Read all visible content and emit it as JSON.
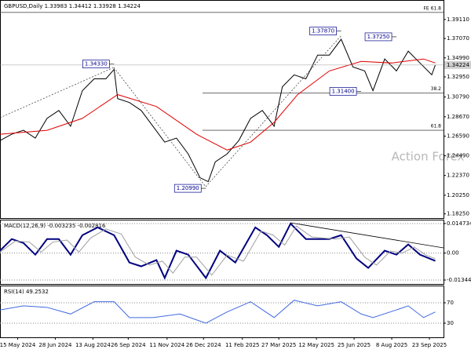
{
  "chart_data": [
    {
      "type": "line",
      "title": "GBPUSD,Daily 1.33983 1.34412 1.33928 1.34224",
      "watermark": "Action Forex",
      "xlim": [
        0,
        377
      ],
      "ylim": [
        1.178,
        1.412
      ],
      "yticks": [
        {
          "value": 1.3911,
          "label": "1.39110"
        },
        {
          "value": 1.3707,
          "label": "1.37070"
        },
        {
          "value": 1.3499,
          "label": "1.34990"
        },
        {
          "value": 1.3295,
          "label": "1.32950"
        },
        {
          "value": 1.3079,
          "label": "1.30790"
        },
        {
          "value": 1.2867,
          "label": "1.28670"
        },
        {
          "value": 1.2659,
          "label": "1.26590"
        },
        {
          "value": 1.2449,
          "label": "1.24490"
        },
        {
          "value": 1.2237,
          "label": "1.22370"
        },
        {
          "value": 1.2025,
          "label": "1.20250"
        },
        {
          "value": 1.1825,
          "label": "1.18250"
        }
      ],
      "last_price": {
        "value": 1.34224,
        "label": "1.34224"
      },
      "series": [
        {
          "name": "GBPUSD",
          "color": "#000000",
          "x": [
            0,
            10,
            20,
            30,
            40,
            50,
            60,
            70,
            80,
            90,
            97,
            100,
            110,
            120,
            130,
            140,
            150,
            160,
            170,
            177,
            183,
            193,
            203,
            213,
            223,
            233,
            240,
            250,
            260,
            270,
            280,
            290,
            300,
            310,
            317,
            327,
            337,
            347,
            357,
            367,
            370
          ],
          "values": [
            1.2612,
            1.268,
            1.2722,
            1.2638,
            1.285,
            1.2935,
            1.2765,
            1.3147,
            1.3274,
            1.3274,
            1.3376,
            1.3062,
            1.302,
            1.2935,
            1.2765,
            1.2595,
            1.2638,
            1.2468,
            1.2213,
            1.2171,
            1.2383,
            1.2468,
            1.2612,
            1.285,
            1.2935,
            1.2765,
            1.3189,
            1.3317,
            1.3274,
            1.3529,
            1.3529,
            1.3699,
            1.3402,
            1.3359,
            1.3147,
            1.3487,
            1.3359,
            1.3571,
            1.3444,
            1.3317,
            1.3422
          ]
        },
        {
          "name": "MA",
          "color": "#e00000",
          "x": [
            0,
            40,
            70,
            100,
            133,
            167,
            193,
            213,
            233,
            253,
            280,
            307,
            333,
            360,
            370
          ],
          "values": [
            1.268,
            1.2722,
            1.285,
            1.3105,
            1.2977,
            1.268,
            1.251,
            1.2595,
            1.2807,
            1.3105,
            1.3359,
            1.3461,
            1.3444,
            1.3487,
            1.3444
          ]
        }
      ],
      "hlines": [
        {
          "label": "FE 61.8",
          "value": 1.3987
        },
        {
          "label": "38.2",
          "value": 1.3121
        },
        {
          "label": "61.8",
          "value": 1.2722
        }
      ],
      "annotations": [
        {
          "label": "1.34330",
          "x": 97,
          "y": 1.3433
        },
        {
          "label": "1.20990",
          "x": 175,
          "y": 1.2099
        },
        {
          "label": "1.37870",
          "x": 290,
          "y": 1.3787
        },
        {
          "label": "1.37250",
          "x": 337,
          "y": 1.3725
        },
        {
          "label": "1.31400",
          "x": 307,
          "y": 1.314
        }
      ]
    },
    {
      "type": "line",
      "title": "MACD(12,26,9) -0.003235 -0.002816",
      "xlim": [
        0,
        377
      ],
      "ylim": [
        -0.0154,
        0.01667
      ],
      "yticks": [
        0.014734,
        {
          "value": 0,
          "label": "0.00"
        },
        -0.013442
      ],
      "grid": true,
      "series": [
        {
          "name": "MACD",
          "color": "#000080",
          "x": [
            0,
            10,
            20,
            30,
            40,
            50,
            60,
            70,
            83,
            97,
            110,
            120,
            133,
            140,
            150,
            160,
            175,
            187,
            200,
            217,
            227,
            237,
            247,
            260,
            270,
            280,
            290,
            303,
            313,
            327,
            337,
            347,
            357,
            370
          ],
          "values": [
            0.0012,
            0.007,
            0.005,
            -0.0008,
            0.007,
            0.007,
            -0.0008,
            0.0089,
            0.0128,
            0.0089,
            -0.0047,
            -0.0066,
            -0.0035,
            -0.0124,
            0.0012,
            -0.0008,
            -0.0124,
            0.0012,
            -0.0047,
            0.0128,
            0.0089,
            0.0031,
            0.0147,
            0.007,
            0.007,
            0.007,
            0.0089,
            -0.0027,
            -0.0074,
            0.0012,
            -0.0008,
            0.0043,
            -0.0008,
            -0.0039
          ]
        },
        {
          "name": "Signal",
          "color": "#a0a0a0",
          "x": [
            0,
            13,
            25,
            35,
            45,
            57,
            67,
            77,
            90,
            103,
            115,
            127,
            138,
            147,
            157,
            167,
            180,
            193,
            207,
            222,
            232,
            242,
            252,
            265,
            285,
            297,
            310,
            320,
            332,
            342,
            352,
            362,
            370
          ],
          "values": [
            0.0005,
            0.006,
            0.0055,
            0.0005,
            0.0055,
            0.0065,
            0.0005,
            0.0075,
            0.012,
            0.0095,
            -0.002,
            -0.006,
            -0.004,
            -0.01,
            -0.002,
            -0.002,
            -0.011,
            -0.001,
            -0.004,
            0.011,
            0.009,
            0.004,
            0.0135,
            0.008,
            0.007,
            0.008,
            -0.002,
            -0.006,
            0.001,
            0.0,
            0.003,
            -0.001,
            -0.0028
          ]
        }
      ]
    },
    {
      "type": "line",
      "title": "RSI(14) 49.2532",
      "xlim": [
        0,
        377
      ],
      "ylim": [
        2.3,
        103.8
      ],
      "yticks": [
        70,
        30
      ],
      "grid": true,
      "xticks": [
        {
          "value": 15,
          "label": "15 May 2024"
        },
        {
          "value": 47,
          "label": "28 Jun 2024"
        },
        {
          "value": 79,
          "label": "13 Aug 2024"
        },
        {
          "value": 109,
          "label": "26 Sep 2024"
        },
        {
          "value": 142,
          "label": "11 Nov 2024"
        },
        {
          "value": 173,
          "label": "26 Dec 2024"
        },
        {
          "value": 206,
          "label": "11 Feb 2025"
        },
        {
          "value": 237,
          "label": "27 Mar 2025"
        },
        {
          "value": 269,
          "label": "12 May 2025"
        },
        {
          "value": 301,
          "label": "25 Jun 2025"
        },
        {
          "value": 333,
          "label": "8 Aug 2025"
        },
        {
          "value": 365,
          "label": "23 Sep 2025"
        }
      ],
      "series": [
        {
          "name": "RSI",
          "color": "#4169e1",
          "x": [
            0,
            20,
            40,
            60,
            80,
            97,
            110,
            130,
            153,
            175,
            193,
            213,
            233,
            250,
            270,
            290,
            307,
            317,
            337,
            347,
            360,
            370
          ],
          "values": [
            56,
            64,
            61,
            48,
            72,
            72,
            41,
            41,
            48,
            30,
            52,
            72,
            41,
            75,
            64,
            72,
            48,
            41,
            56,
            64,
            41,
            52
          ]
        }
      ]
    }
  ]
}
